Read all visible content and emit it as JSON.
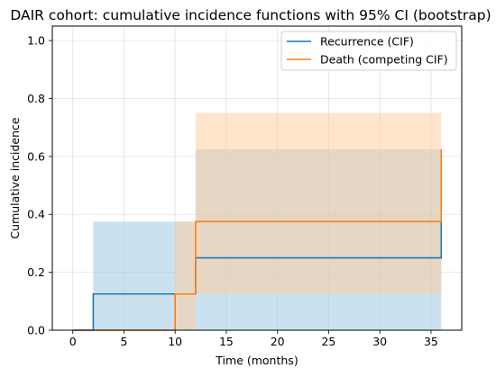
{
  "chart_data": {
    "type": "line",
    "title": "DAIR cohort: cumulative incidence functions with 95% CI (bootstrap)",
    "xlabel": "Time (months)",
    "ylabel": "Cumulative incidence",
    "xlim": [
      -2,
      38
    ],
    "ylim": [
      0,
      1.05
    ],
    "xticks": [
      0,
      5,
      10,
      15,
      20,
      25,
      30,
      35
    ],
    "yticks": [
      0.0,
      0.2,
      0.4,
      0.6,
      0.8,
      1.0
    ],
    "xtick_labels": [
      "0",
      "5",
      "10",
      "15",
      "20",
      "25",
      "30",
      "35"
    ],
    "ytick_labels": [
      "0.0",
      "0.2",
      "0.4",
      "0.6",
      "0.8",
      "1.0"
    ],
    "grid": true,
    "legend_position": "upper right",
    "series": [
      {
        "name": "Recurrence (CIF)",
        "color": "#1f77b4",
        "band_color": "#9ecae1",
        "step_x": [
          0,
          2,
          2,
          12,
          12,
          36,
          36
        ],
        "step_y": [
          0,
          0,
          0.125,
          0.125,
          0.25,
          0.25,
          0.375
        ],
        "ci": [
          {
            "x0": 2,
            "x1": 12,
            "lower": 0.0,
            "upper": 0.375
          },
          {
            "x0": 12,
            "x1": 36,
            "lower": 0.0,
            "upper": 0.625
          }
        ]
      },
      {
        "name": "Death (competing CIF)",
        "color": "#ff7f0e",
        "band_color": "#ffcc99",
        "step_x": [
          0,
          10,
          10,
          12,
          12,
          36,
          36
        ],
        "step_y": [
          0,
          0,
          0.125,
          0.125,
          0.375,
          0.375,
          0.625
        ],
        "ci": [
          {
            "x0": 10,
            "x1": 12,
            "lower": 0.0,
            "upper": 0.375
          },
          {
            "x0": 12,
            "x1": 36,
            "lower": 0.125,
            "upper": 0.75
          }
        ]
      }
    ]
  }
}
